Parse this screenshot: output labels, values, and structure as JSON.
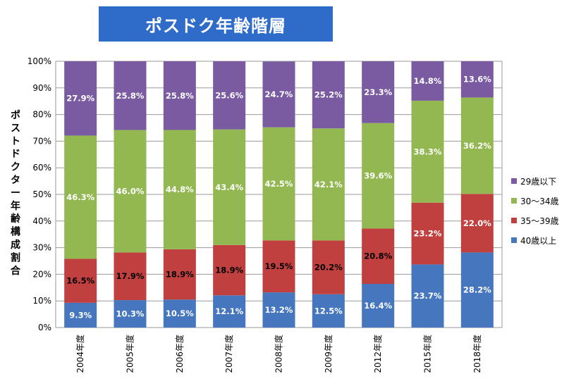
{
  "chart_data": {
    "type": "bar",
    "stacked": true,
    "title": "ポスドク年齢階層",
    "ylabel": "ポストドクター年齢構成割合",
    "xlabel": "",
    "ylim": [
      0,
      100
    ],
    "yticks": [
      "0%",
      "10%",
      "20%",
      "30%",
      "40%",
      "50%",
      "60%",
      "70%",
      "80%",
      "90%",
      "100%"
    ],
    "categories": [
      "2004年度",
      "2005年度",
      "2006年度",
      "2007年度",
      "2008年度",
      "2009年度",
      "2012年度",
      "2015年度",
      "2018年度"
    ],
    "series": [
      {
        "name": "40歳以上",
        "color": "#4677be",
        "values": [
          9.3,
          10.3,
          10.5,
          12.1,
          13.2,
          12.5,
          16.4,
          23.7,
          28.2
        ],
        "labels": [
          "9.3%",
          "10.3%",
          "10.5%",
          "12.1%",
          "13.2%",
          "12.5%",
          "16.4%",
          "23.7%",
          "28.2%"
        ]
      },
      {
        "name": "35～39歳",
        "color": "#c0403f",
        "values": [
          16.5,
          17.9,
          18.9,
          18.9,
          19.5,
          20.2,
          20.8,
          23.2,
          22.0
        ],
        "labels": [
          "16.5%",
          "17.9%",
          "18.9%",
          "18.9%",
          "19.5%",
          "20.2%",
          "20.8%",
          "23.2%",
          "22.0%"
        ]
      },
      {
        "name": "30～34歳",
        "color": "#93b852",
        "values": [
          46.3,
          46.0,
          44.8,
          43.4,
          42.5,
          42.1,
          39.6,
          38.3,
          36.2
        ],
        "labels": [
          "46.3%",
          "46.0%",
          "44.8%",
          "43.4%",
          "42.5%",
          "42.1%",
          "39.6%",
          "38.3%",
          "36.2%"
        ]
      },
      {
        "name": "29歳以下",
        "color": "#7a5ba1",
        "values": [
          27.9,
          25.8,
          25.8,
          25.6,
          24.7,
          25.2,
          23.3,
          14.8,
          13.6
        ],
        "labels": [
          "27.9%",
          "25.8%",
          "25.8%",
          "25.6%",
          "24.7%",
          "25.2%",
          "23.3%",
          "14.8%",
          "13.6%"
        ]
      }
    ],
    "legend_order": [
      "29歳以下",
      "30～34歳",
      "35～39歳",
      "40歳以上"
    ],
    "legend_position": "right",
    "grid": true
  }
}
